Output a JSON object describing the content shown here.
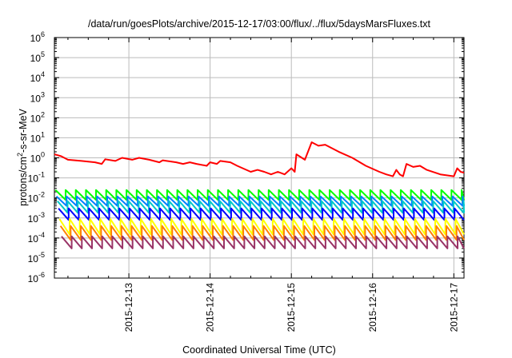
{
  "chart_data": {
    "type": "line",
    "title": "/data/run/goesPlots/archive/2015-12-17/03:00/flux/../flux/5daysMarsFluxes.txt",
    "xlabel": "Coordinated Universal Time (UTC)",
    "ylabel": {
      "prefix": "protons/cm",
      "sup": "2",
      "suffix": "-s-sr-MeV"
    },
    "yscale": "log",
    "ylim": [
      1e-06,
      1000000.0
    ],
    "xlim": [
      "2015-12-12T02:00",
      "2015-12-17T03:00"
    ],
    "grid": true,
    "legend": "none",
    "y_ticks": [
      {
        "value": 1e-06,
        "base": "10",
        "exp": "-6"
      },
      {
        "value": 1e-05,
        "base": "10",
        "exp": "-5"
      },
      {
        "value": 0.0001,
        "base": "10",
        "exp": "-4"
      },
      {
        "value": 0.001,
        "base": "10",
        "exp": "-3"
      },
      {
        "value": 0.01,
        "base": "10",
        "exp": "-2"
      },
      {
        "value": 0.1,
        "base": "10",
        "exp": "-1"
      },
      {
        "value": 1.0,
        "base": "10",
        "exp": "0"
      },
      {
        "value": 10.0,
        "base": "10",
        "exp": "1"
      },
      {
        "value": 100.0,
        "base": "10",
        "exp": "2"
      },
      {
        "value": 1000.0,
        "base": "10",
        "exp": "3"
      },
      {
        "value": 10000.0,
        "base": "10",
        "exp": "4"
      },
      {
        "value": 100000.0,
        "base": "10",
        "exp": "5"
      },
      {
        "value": 1000000.0,
        "base": "10",
        "exp": "6"
      }
    ],
    "x_ticks": [
      "2015-12-13",
      "2015-12-14",
      "2015-12-15",
      "2015-12-16",
      "2015-12-17"
    ],
    "series": [
      {
        "color": "#ff0000",
        "points": [
          [
            "2015-12-12T02:00",
            1.5
          ],
          [
            "2015-12-12T04:00",
            1.2
          ],
          [
            "2015-12-12T06:00",
            0.8
          ],
          [
            "2015-12-12T10:00",
            0.7
          ],
          [
            "2015-12-12T14:00",
            0.6
          ],
          [
            "2015-12-12T16:00",
            0.5
          ],
          [
            "2015-12-12T17:00",
            0.85
          ],
          [
            "2015-12-12T20:00",
            0.7
          ],
          [
            "2015-12-12T22:00",
            1.0
          ],
          [
            "2015-12-13T01:00",
            0.8
          ],
          [
            "2015-12-13T03:00",
            1.0
          ],
          [
            "2015-12-13T06:00",
            0.8
          ],
          [
            "2015-12-13T09:00",
            0.6
          ],
          [
            "2015-12-13T10:00",
            0.75
          ],
          [
            "2015-12-13T14:00",
            0.6
          ],
          [
            "2015-12-13T16:00",
            0.5
          ],
          [
            "2015-12-13T18:00",
            0.6
          ],
          [
            "2015-12-13T20:00",
            0.5
          ],
          [
            "2015-12-13T23:00",
            0.4
          ],
          [
            "2015-12-14T00:00",
            0.6
          ],
          [
            "2015-12-14T02:00",
            0.5
          ],
          [
            "2015-12-14T03:00",
            0.7
          ],
          [
            "2015-12-14T06:00",
            0.6
          ],
          [
            "2015-12-14T08:00",
            0.4
          ],
          [
            "2015-12-14T12:00",
            0.2
          ],
          [
            "2015-12-14T14:00",
            0.25
          ],
          [
            "2015-12-14T16:00",
            0.2
          ],
          [
            "2015-12-14T18:00",
            0.15
          ],
          [
            "2015-12-14T20:00",
            0.2
          ],
          [
            "2015-12-14T22:00",
            0.15
          ],
          [
            "2015-12-15T00:00",
            0.3
          ],
          [
            "2015-12-15T01:00",
            0.2
          ],
          [
            "2015-12-15T01:30",
            1.5
          ],
          [
            "2015-12-15T04:00",
            0.8
          ],
          [
            "2015-12-15T06:00",
            6.0
          ],
          [
            "2015-12-15T08:00",
            4.0
          ],
          [
            "2015-12-15T10:00",
            4.5
          ],
          [
            "2015-12-15T14:00",
            2.0
          ],
          [
            "2015-12-15T18:00",
            1.0
          ],
          [
            "2015-12-15T22:00",
            0.4
          ],
          [
            "2015-12-16T02:00",
            0.2
          ],
          [
            "2015-12-16T04:00",
            0.15
          ],
          [
            "2015-12-16T06:00",
            0.12
          ],
          [
            "2015-12-16T07:00",
            0.25
          ],
          [
            "2015-12-16T08:00",
            0.15
          ],
          [
            "2015-12-16T09:00",
            0.12
          ],
          [
            "2015-12-16T10:00",
            0.5
          ],
          [
            "2015-12-16T12:00",
            0.35
          ],
          [
            "2015-12-16T14:00",
            0.4
          ],
          [
            "2015-12-16T16:00",
            0.25
          ],
          [
            "2015-12-16T20:00",
            0.15
          ],
          [
            "2015-12-17T00:00",
            0.12
          ],
          [
            "2015-12-17T01:00",
            0.3
          ],
          [
            "2015-12-17T02:00",
            0.2
          ],
          [
            "2015-12-17T03:00",
            0.18
          ]
        ]
      },
      {
        "color": "#00ff00",
        "sawtooth": {
          "high": 0.025,
          "low": 0.008,
          "period_hours": 3
        }
      },
      {
        "color": "#0080ff",
        "sawtooth": {
          "high": 0.012,
          "low": 0.004,
          "period_hours": 3
        }
      },
      {
        "color": "#00c8c8",
        "sawtooth": {
          "high": 0.007,
          "low": 0.0018,
          "period_hours": 3
        }
      },
      {
        "color": "#0000ff",
        "sawtooth": {
          "high": 0.003,
          "low": 0.0008,
          "period_hours": 3
        }
      },
      {
        "color": "#ffff00",
        "sawtooth": {
          "high": 0.0009,
          "low": 0.00015,
          "period_hours": 3
        }
      },
      {
        "color": "#ff8000",
        "sawtooth": {
          "high": 0.0004,
          "low": 8e-05,
          "period_hours": 3
        }
      },
      {
        "color": "#993366",
        "sawtooth": {
          "high": 0.00012,
          "low": 3e-05,
          "period_hours": 3
        }
      }
    ]
  }
}
